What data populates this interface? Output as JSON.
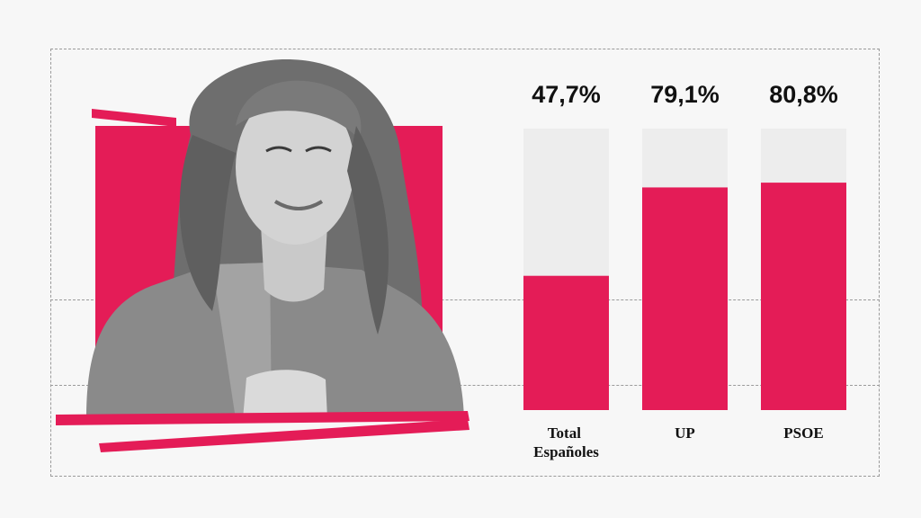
{
  "chart_data": {
    "type": "bar",
    "categories": [
      [
        "Total",
        "Españoles"
      ],
      [
        "UP"
      ],
      [
        "PSOE"
      ]
    ],
    "values": [
      47.7,
      79.1,
      80.8
    ],
    "value_labels": [
      "47,7%",
      "79,1%",
      "80,8%"
    ],
    "ylim": [
      0,
      100
    ],
    "colors": {
      "fill": "#e41c57",
      "track": "#ededed",
      "accent": "#e41c57"
    },
    "grid": false
  },
  "photo": {
    "icon": "woman-portrait-photo"
  }
}
